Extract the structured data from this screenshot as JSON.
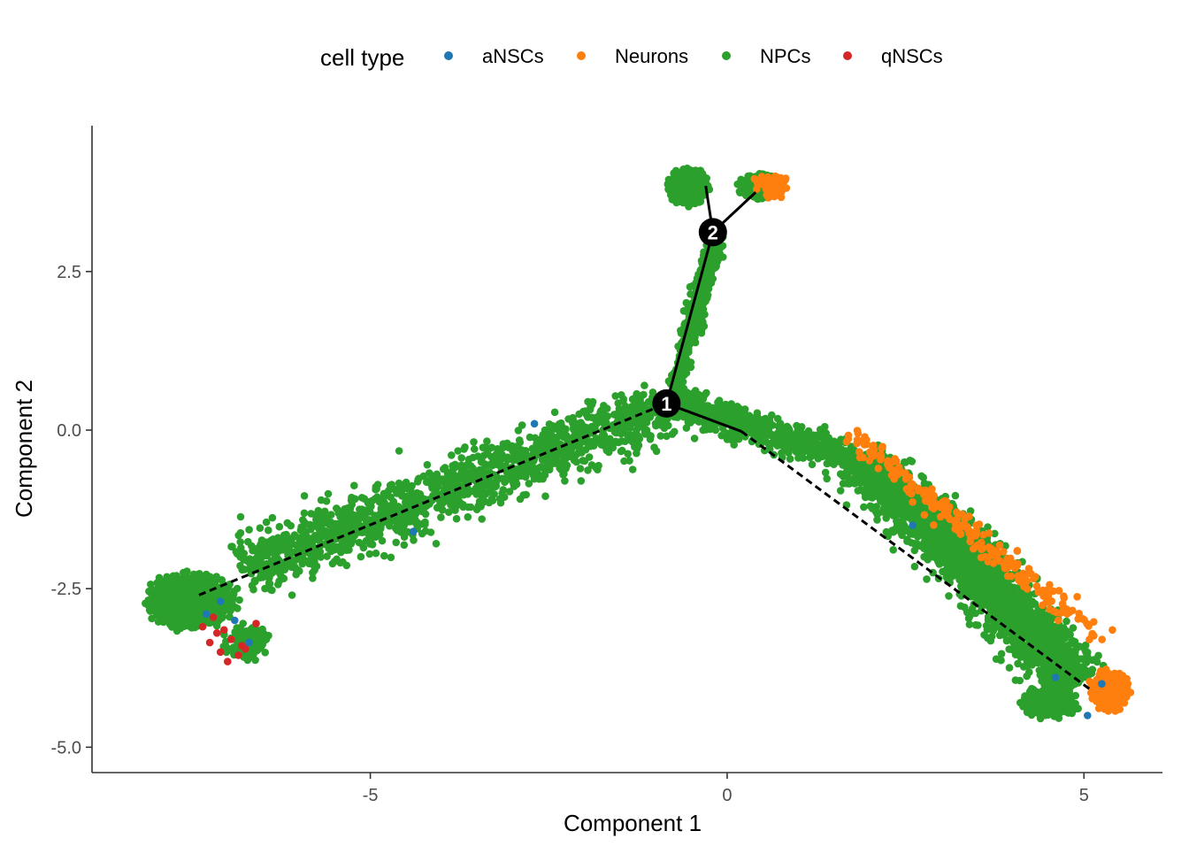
{
  "chart_data": {
    "type": "scatter",
    "title": "",
    "xlabel": "Component 1",
    "ylabel": "Component 2",
    "xlim": [
      -8.9,
      6.1
    ],
    "ylim": [
      -5.4,
      4.8
    ],
    "xticks": [
      -5,
      0,
      5
    ],
    "xtick_labels": [
      "-5",
      "0",
      "5"
    ],
    "yticks": [
      -5.0,
      -2.5,
      0.0,
      2.5
    ],
    "ytick_labels": [
      "-5.0",
      "-2.5",
      "0.0",
      "2.5"
    ],
    "grid": false,
    "legend": {
      "title": "cell type",
      "position": "top",
      "entries": [
        {
          "name": "aNSCs",
          "color": "#1f77b4"
        },
        {
          "name": "Neurons",
          "color": "#ff7f0e"
        },
        {
          "name": "NPCs",
          "color": "#2ca02c"
        },
        {
          "name": "qNSCs",
          "color": "#d62728"
        }
      ]
    },
    "trajectory": {
      "nodes": [
        {
          "label": "1",
          "x": -0.85,
          "y": 0.42
        },
        {
          "label": "2",
          "x": -0.2,
          "y": 3.12
        }
      ],
      "segments": [
        {
          "from": [
            -7.4,
            -2.6
          ],
          "to": [
            -0.85,
            0.42
          ],
          "style": "dashed"
        },
        {
          "from": [
            -0.85,
            0.42
          ],
          "to": [
            0.2,
            -0.02
          ],
          "style": "solid"
        },
        {
          "from": [
            0.2,
            -0.02
          ],
          "to": [
            5.1,
            -4.1
          ],
          "style": "dashed"
        },
        {
          "from": [
            -0.85,
            0.42
          ],
          "to": [
            -0.2,
            3.12
          ],
          "style": "solid"
        },
        {
          "from": [
            -0.2,
            3.12
          ],
          "to": [
            -0.3,
            3.85
          ],
          "style": "solid"
        },
        {
          "from": [
            -0.2,
            3.12
          ],
          "to": [
            0.4,
            3.75
          ],
          "style": "solid"
        }
      ]
    },
    "series": [
      {
        "name": "NPCs",
        "color": "#2ca02c",
        "distribution": [
          {
            "kind": "blob",
            "cx": -7.5,
            "cy": -2.7,
            "rx": 0.65,
            "ry": 0.45,
            "n": 900
          },
          {
            "kind": "blob",
            "cx": -6.75,
            "cy": -3.35,
            "rx": 0.35,
            "ry": 0.3,
            "n": 120
          },
          {
            "kind": "band",
            "from": [
              -6.8,
              -2.2
            ],
            "to": [
              -0.9,
              0.35
            ],
            "width": 0.45,
            "n": 1400
          },
          {
            "kind": "band",
            "from": [
              -0.75,
              0.5
            ],
            "to": [
              -0.15,
              3.1
            ],
            "width": 0.12,
            "n": 500
          },
          {
            "kind": "blob",
            "cx": -0.55,
            "cy": 3.85,
            "rx": 0.28,
            "ry": 0.3,
            "n": 500
          },
          {
            "kind": "blob",
            "cx": 0.45,
            "cy": 3.85,
            "rx": 0.3,
            "ry": 0.22,
            "n": 220
          },
          {
            "kind": "band",
            "from": [
              -0.8,
              0.45
            ],
            "to": [
              1.8,
              -0.5
            ],
            "width": 0.25,
            "n": 600
          },
          {
            "kind": "band",
            "from": [
              1.8,
              -0.5
            ],
            "to": [
              3.2,
              -1.8
            ],
            "width": 0.4,
            "n": 800
          },
          {
            "kind": "band",
            "from": [
              3.2,
              -1.8
            ],
            "to": [
              4.9,
              -4.0
            ],
            "width": 0.42,
            "n": 1300
          },
          {
            "kind": "blob",
            "cx": 4.5,
            "cy": -4.3,
            "rx": 0.45,
            "ry": 0.25,
            "n": 250
          }
        ]
      },
      {
        "name": "Neurons",
        "color": "#ff7f0e",
        "distribution": [
          {
            "kind": "blob",
            "cx": 5.35,
            "cy": -4.1,
            "rx": 0.28,
            "ry": 0.32,
            "n": 400
          },
          {
            "kind": "band",
            "from": [
              1.5,
              -0.3
            ],
            "to": [
              5.1,
              -3.6
            ],
            "width": 0.18,
            "offset": 0.32,
            "n": 220
          },
          {
            "kind": "blob",
            "cx": 0.6,
            "cy": 3.85,
            "rx": 0.3,
            "ry": 0.2,
            "n": 60
          }
        ]
      },
      {
        "name": "aNSCs",
        "color": "#1f77b4",
        "points": [
          [
            -7.1,
            -2.7
          ],
          [
            -6.7,
            -3.35
          ],
          [
            -4.4,
            -1.6
          ],
          [
            -2.7,
            0.1
          ],
          [
            -6.9,
            -3.0
          ],
          [
            4.6,
            -3.9
          ],
          [
            5.05,
            -4.5
          ],
          [
            5.25,
            -4.0
          ],
          [
            2.6,
            -1.5
          ],
          [
            -7.3,
            -2.9
          ]
        ]
      },
      {
        "name": "qNSCs",
        "color": "#d62728",
        "points": [
          [
            -7.0,
            -3.65
          ],
          [
            -7.1,
            -3.5
          ],
          [
            -6.95,
            -3.3
          ],
          [
            -7.35,
            -3.1
          ],
          [
            -7.2,
            -2.95
          ],
          [
            -6.75,
            -3.45
          ],
          [
            -6.85,
            -3.55
          ],
          [
            -7.25,
            -3.35
          ],
          [
            -7.05,
            -3.15
          ],
          [
            -6.6,
            -3.05
          ],
          [
            -6.8,
            -3.4
          ],
          [
            -7.15,
            -3.2
          ]
        ]
      }
    ]
  }
}
